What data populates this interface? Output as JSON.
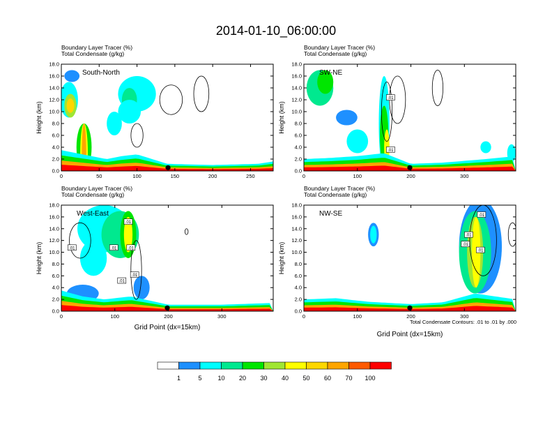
{
  "figure": {
    "title": "2014-01-10_06:00:00",
    "colorbar": {
      "colors": [
        "#ffffff",
        "#1e90ff",
        "#00ffff",
        "#00e98f",
        "#00e600",
        "#a0e632",
        "#ffff00",
        "#ffd700",
        "#ffa500",
        "#ff5a00",
        "#ff0000"
      ],
      "labels": [
        "1",
        "5",
        "10",
        "20",
        "30",
        "40",
        "50",
        "60",
        "70",
        "100"
      ]
    },
    "contour_info": "Total Condensate Contours: .01 to .01 by .000"
  },
  "chart_data": [
    {
      "type": "heatmap",
      "annotation": "South-North",
      "subtitle_line1": "Boundary Layer Tracer   (%)",
      "subtitle_line2": "Total Condensate   (g/kg)",
      "ylabel": "Height (km)",
      "xlabel": "",
      "xlim": [
        0,
        280
      ],
      "ylim": [
        0,
        18
      ],
      "xticks": [
        0,
        50,
        100,
        150,
        200,
        250
      ],
      "yticks": [
        "0.0",
        "2.0",
        "4.0",
        "6.0",
        "8.0",
        "10.0",
        "12.0",
        "14.0",
        "16.0",
        "18.0"
      ],
      "marker_x": 141,
      "contour_labels": []
    },
    {
      "type": "heatmap",
      "annotation": "SW-NE",
      "subtitle_line1": "Boundary Layer Tracer   (%)",
      "subtitle_line2": "Total Condensate   (g/kg)",
      "ylabel": "Height (km)",
      "xlabel": "",
      "xlim": [
        0,
        396
      ],
      "ylim": [
        0,
        18
      ],
      "xticks": [
        0,
        100,
        200,
        300
      ],
      "yticks": [
        "0.0",
        "2.0",
        "4.0",
        "6.0",
        "8.0",
        "10.0",
        "12.0",
        "14.0",
        "16.0",
        "18.0"
      ],
      "marker_x": 198,
      "contour_labels": [
        {
          "text": ".01",
          "x": 162,
          "y": 12.4
        },
        {
          "text": ".01",
          "x": 162,
          "y": 3.6
        }
      ]
    },
    {
      "type": "heatmap",
      "annotation": "West-East",
      "subtitle_line1": "Boundary Layer Tracer   (%)",
      "subtitle_line2": "Total Condensate   (g/kg)",
      "ylabel": "Height (km)",
      "xlabel": "Grid Point (dx=15km)",
      "xlim": [
        0,
        396
      ],
      "ylim": [
        0,
        18
      ],
      "xticks": [
        0,
        100,
        200,
        300
      ],
      "yticks": [
        "0.0",
        "2.0",
        "4.0",
        "6.0",
        "8.0",
        "10.0",
        "12.0",
        "14.0",
        "16.0",
        "18.0"
      ],
      "marker_x": 198,
      "contour_labels": [
        {
          "text": ".01",
          "x": 125,
          "y": 15.2
        },
        {
          "text": ".01",
          "x": 130,
          "y": 10.8
        },
        {
          "text": ".01",
          "x": 98,
          "y": 10.8
        },
        {
          "text": ".01",
          "x": 137,
          "y": 6.2
        },
        {
          "text": ".01",
          "x": 113,
          "y": 5.2
        },
        {
          "text": ".01",
          "x": 20,
          "y": 10.8
        }
      ]
    },
    {
      "type": "heatmap",
      "annotation": "NW-SE",
      "subtitle_line1": "Boundary Layer Tracer   (%)",
      "subtitle_line2": "Total Condensate   (g/kg)",
      "ylabel": "Height (km)",
      "xlabel": "Grid Point (dx=15km)",
      "xlim": [
        0,
        396
      ],
      "ylim": [
        0,
        18
      ],
      "xticks": [
        0,
        100,
        200,
        300
      ],
      "yticks": [
        "0.0",
        "2.0",
        "4.0",
        "6.0",
        "8.0",
        "10.0",
        "12.0",
        "14.0",
        "16.0",
        "18.0"
      ],
      "marker_x": 198,
      "contour_labels": [
        {
          "text": ".01",
          "x": 332,
          "y": 16.4
        },
        {
          "text": ".01",
          "x": 308,
          "y": 13.0
        },
        {
          "text": ".01",
          "x": 302,
          "y": 11.4
        },
        {
          "text": ".01",
          "x": 330,
          "y": 10.4
        }
      ]
    }
  ]
}
